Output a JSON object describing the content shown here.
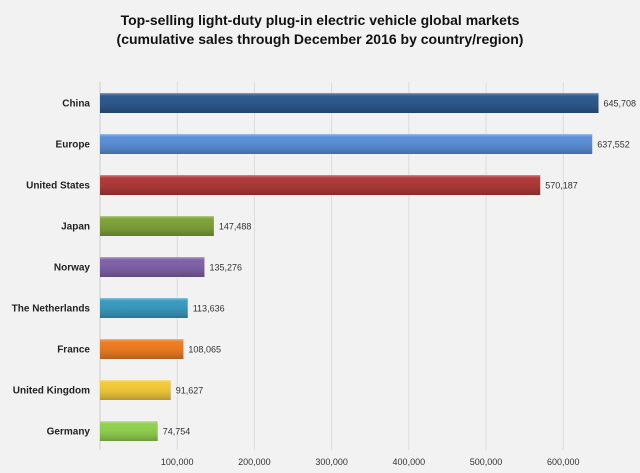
{
  "chart_data": {
    "type": "bar",
    "orientation": "horizontal",
    "title": "Top-selling light-duty plug-in electric vehicle global markets",
    "subtitle": "(cumulative sales through December 2016 by country/region)",
    "categories": [
      "China",
      "Europe",
      "United States",
      "Japan",
      "Norway",
      "The Netherlands",
      "France",
      "United Kingdom",
      "Germany"
    ],
    "values": [
      645708,
      637552,
      570187,
      147488,
      135276,
      113636,
      108065,
      91627,
      74754
    ],
    "data_labels": [
      "645,708",
      "637,552",
      "570,187",
      "147,488",
      "135,276",
      "113,636",
      "108,065",
      "91,627",
      "74,754"
    ],
    "colors": [
      "#2e5a8e",
      "#5b8fd6",
      "#b03a3a",
      "#7fa23a",
      "#8062a8",
      "#3a9bbf",
      "#ee7d22",
      "#f2c93a",
      "#92d050"
    ],
    "xticks": [
      100000,
      200000,
      300000,
      400000,
      500000,
      600000
    ],
    "xtick_labels": [
      "100,000",
      "200,000",
      "300,000",
      "400,000",
      "500,000",
      "600,000"
    ],
    "xlim": [
      0,
      680000
    ],
    "grid": true,
    "legend": "none"
  }
}
